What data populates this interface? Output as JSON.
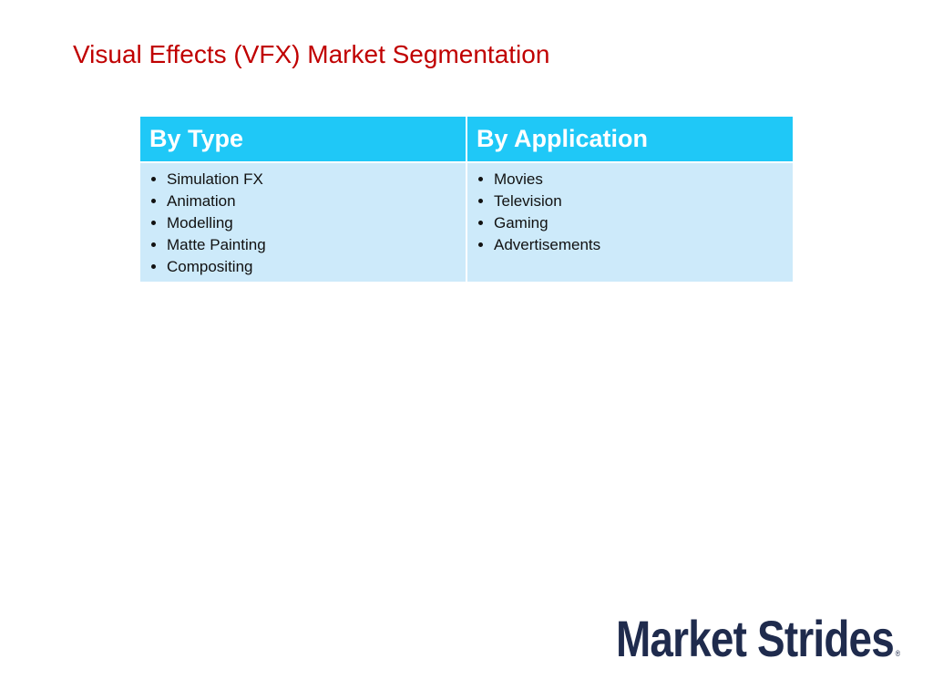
{
  "header": {
    "title": "Visual Effects (VFX) Market Segmentation"
  },
  "table": {
    "columns": [
      "By Type",
      "By Application"
    ],
    "rows": [
      [
        [
          "Simulation FX",
          "Animation",
          "Modelling",
          "Matte Painting",
          "Compositing"
        ],
        [
          "Movies",
          "Television",
          "Gaming",
          "Advertisements"
        ]
      ]
    ]
  },
  "logo": {
    "text": "Market Strides",
    "mark": "®"
  }
}
